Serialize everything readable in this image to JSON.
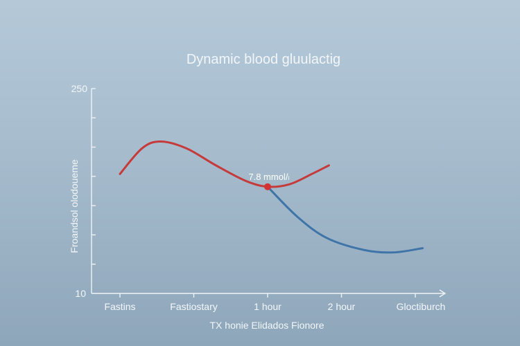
{
  "chart_data": {
    "type": "line",
    "title": "Dynamic blood gluulactig",
    "xlabel": "TX honie Elidados Fionore",
    "ylabel": "Froandsol olodoueme",
    "categories": [
      "Fastins",
      "Fastiostary",
      "1 hour",
      "2 hour",
      "Gloctiburch"
    ],
    "ylim": [
      10,
      250
    ],
    "y_tick_labels": [
      "250",
      "10"
    ],
    "grid": false,
    "legend": "none",
    "series": [
      {
        "color": "#c53a3a",
        "points": [
          {
            "x": 0.0,
            "y": 150
          },
          {
            "x": 0.3,
            "y": 180
          },
          {
            "x": 0.55,
            "y": 188
          },
          {
            "x": 0.9,
            "y": 180
          },
          {
            "x": 1.3,
            "y": 160
          },
          {
            "x": 1.7,
            "y": 142
          },
          {
            "x": 2.0,
            "y": 135
          },
          {
            "x": 2.3,
            "y": 138
          },
          {
            "x": 2.6,
            "y": 150
          },
          {
            "x": 2.83,
            "y": 160
          }
        ]
      },
      {
        "color": "#3f74a8",
        "points": [
          {
            "x": 2.0,
            "y": 135
          },
          {
            "x": 2.4,
            "y": 100
          },
          {
            "x": 2.8,
            "y": 75
          },
          {
            "x": 3.3,
            "y": 61
          },
          {
            "x": 3.7,
            "y": 58
          },
          {
            "x": 4.1,
            "y": 63
          }
        ]
      }
    ],
    "annotations": [
      {
        "text": "7.8 mmol/ₗ",
        "x": 2.0,
        "y": 135,
        "marker_color": "#d23232"
      }
    ]
  }
}
